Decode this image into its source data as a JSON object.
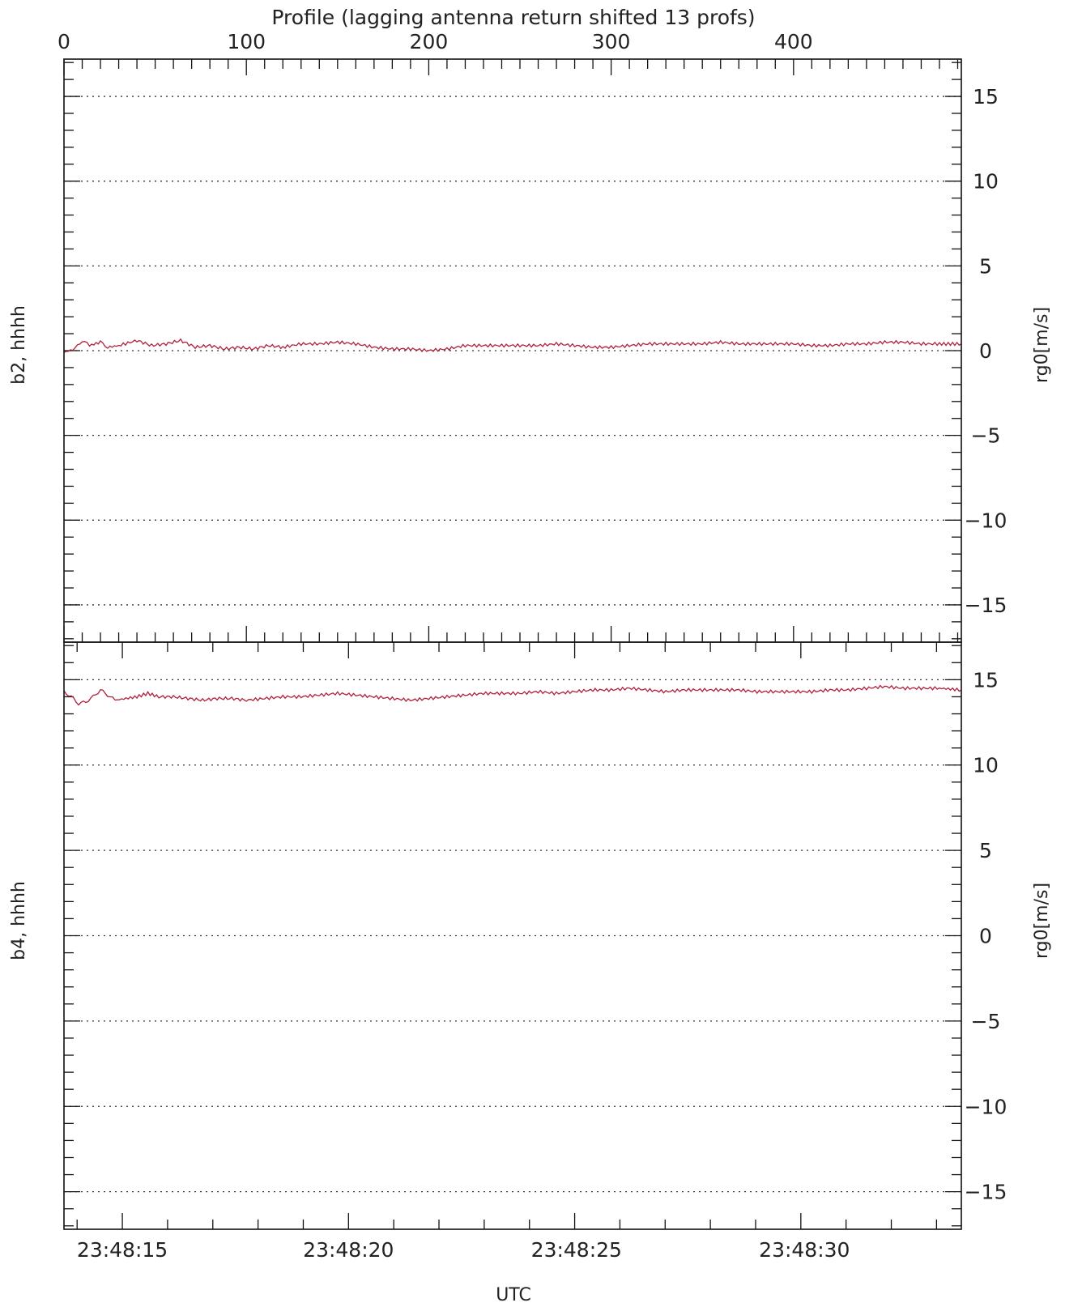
{
  "colors": {
    "axis": "#111111",
    "grid": "#333333",
    "trace": "#b0203a",
    "text": "#222222"
  },
  "chart_data": [
    {
      "type": "line",
      "panel_label": "b2, hhhh",
      "ylabel": "rg0[m/s]",
      "ylim": [
        -17.2,
        17.2
      ],
      "yticks": [
        -15,
        -10,
        -5,
        0,
        5,
        10,
        15
      ],
      "ytick_labels": [
        "−15",
        "−10",
        "−5",
        "0",
        "5",
        "10",
        "15"
      ],
      "grid": "dotted horizontal",
      "top_axis": {
        "label": "Profile (lagging antenna return shifted 13 profs)",
        "xlim": [
          0,
          492
        ],
        "ticks": [
          0,
          100,
          200,
          300,
          400
        ],
        "tick_labels": [
          "0",
          "100",
          "200",
          "300",
          "400"
        ]
      },
      "series": [
        {
          "x": [
            0,
            6,
            10,
            14,
            20,
            24,
            30,
            40,
            48,
            56,
            64,
            72,
            80,
            88,
            96,
            104,
            112,
            120,
            130,
            140,
            150,
            160,
            170,
            180,
            190,
            200,
            210,
            220,
            230,
            240,
            250,
            260,
            270,
            280,
            290,
            300,
            310,
            320,
            330,
            340,
            350,
            360,
            370,
            380,
            390,
            400,
            410,
            420,
            430,
            440,
            450,
            460,
            470,
            480,
            492
          ],
          "y": [
            -0.1,
            0.1,
            0.6,
            0.3,
            0.5,
            0.2,
            0.3,
            0.6,
            0.3,
            0.4,
            0.6,
            0.2,
            0.3,
            0.1,
            0.2,
            0.1,
            0.3,
            0.2,
            0.4,
            0.4,
            0.5,
            0.4,
            0.2,
            0.1,
            0.1,
            0.0,
            0.1,
            0.3,
            0.3,
            0.3,
            0.3,
            0.3,
            0.4,
            0.3,
            0.2,
            0.2,
            0.3,
            0.4,
            0.4,
            0.4,
            0.4,
            0.5,
            0.4,
            0.4,
            0.4,
            0.4,
            0.3,
            0.3,
            0.4,
            0.4,
            0.5,
            0.5,
            0.4,
            0.4,
            0.4
          ]
        }
      ]
    },
    {
      "type": "line",
      "panel_label": "b4, hhhh",
      "ylabel": "rg0[m/s]",
      "ylim": [
        -17.2,
        17.2
      ],
      "yticks": [
        -15,
        -10,
        -5,
        0,
        5,
        10,
        15
      ],
      "ytick_labels": [
        "−15",
        "−10",
        "−5",
        "0",
        "5",
        "10",
        "15"
      ],
      "grid": "dotted horizontal",
      "xlabel": "UTC",
      "bottom_axis": {
        "label": "UTC",
        "time_ticks": [
          "23:48:15",
          "23:48:20",
          "23:48:25",
          "23:48:30"
        ],
        "time_tick_profiles": [
          32,
          156,
          281,
          406
        ],
        "minor_tick_seconds": 1
      },
      "series": [
        {
          "x": [
            0,
            4,
            8,
            12,
            16,
            20,
            24,
            28,
            34,
            40,
            46,
            52,
            60,
            68,
            76,
            84,
            92,
            100,
            110,
            120,
            130,
            140,
            150,
            160,
            170,
            180,
            190,
            200,
            210,
            220,
            230,
            240,
            250,
            260,
            270,
            280,
            290,
            300,
            310,
            320,
            330,
            340,
            350,
            360,
            370,
            380,
            390,
            400,
            410,
            420,
            430,
            440,
            450,
            460,
            470,
            480,
            492
          ],
          "y": [
            14.3,
            14.0,
            13.6,
            13.7,
            14.0,
            14.4,
            14.1,
            13.8,
            13.9,
            14.0,
            14.2,
            14.0,
            14.0,
            13.9,
            13.8,
            13.9,
            13.9,
            13.8,
            13.9,
            14.0,
            14.0,
            14.1,
            14.2,
            14.1,
            14.0,
            13.9,
            13.8,
            13.9,
            14.0,
            14.1,
            14.2,
            14.2,
            14.2,
            14.3,
            14.2,
            14.3,
            14.4,
            14.4,
            14.5,
            14.4,
            14.3,
            14.4,
            14.4,
            14.4,
            14.4,
            14.3,
            14.3,
            14.3,
            14.3,
            14.4,
            14.4,
            14.5,
            14.6,
            14.5,
            14.5,
            14.5,
            14.4
          ]
        }
      ]
    }
  ]
}
